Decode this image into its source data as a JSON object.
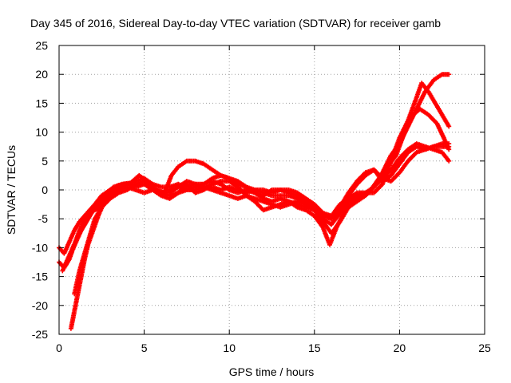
{
  "chart_data": {
    "type": "scatter",
    "title": "Day 345 of 2016, Sidereal Day-to-day VTEC variation (SDTVAR) for receiver gamb",
    "xlabel": "GPS time / hours",
    "ylabel": "SDTVAR / TECUs",
    "xlim": [
      0,
      25
    ],
    "ylim": [
      -25,
      25
    ],
    "x_ticks": [
      "0",
      "5",
      "10",
      "15",
      "20",
      "25"
    ],
    "y_ticks": [
      "25",
      "20",
      "15",
      "10",
      "5",
      "0",
      "-5",
      "-10",
      "-15",
      "-20",
      "-25"
    ],
    "grid": true,
    "marker": "+",
    "color": "#ff0000",
    "series": [
      {
        "points": [
          [
            0.0,
            -10.0
          ],
          [
            0.3,
            -11.0
          ],
          [
            0.6,
            -9.0
          ],
          [
            0.9,
            -7.0
          ],
          [
            1.2,
            -5.5
          ],
          [
            1.5,
            -4.5
          ],
          [
            1.8,
            -3.5
          ],
          [
            2.1,
            -2.5
          ],
          [
            2.5,
            -1.0
          ],
          [
            3.0,
            0.0
          ],
          [
            3.5,
            0.8
          ],
          [
            4.0,
            1.0
          ],
          [
            4.5,
            1.5
          ],
          [
            5.0,
            2.0
          ],
          [
            5.5,
            1.0
          ],
          [
            6.0,
            0.5
          ],
          [
            6.5,
            0.5
          ],
          [
            7.0,
            1.0
          ],
          [
            7.5,
            0.5
          ],
          [
            8.0,
            1.0
          ],
          [
            8.5,
            1.0
          ],
          [
            9.0,
            1.5
          ],
          [
            9.5,
            1.0
          ],
          [
            10.0,
            0.0
          ],
          [
            10.5,
            -0.5
          ],
          [
            11.0,
            0.0
          ],
          [
            11.5,
            -0.5
          ],
          [
            12.0,
            -1.0
          ],
          [
            12.5,
            0.0
          ],
          [
            13.0,
            0.0
          ],
          [
            13.5,
            -0.5
          ],
          [
            14.0,
            -1.0
          ],
          [
            14.5,
            -2.0
          ],
          [
            15.0,
            -3.0
          ],
          [
            15.5,
            -5.0
          ],
          [
            16.0,
            -6.0
          ],
          [
            16.5,
            -4.0
          ],
          [
            17.0,
            -2.0
          ],
          [
            17.5,
            -1.0
          ],
          [
            18.0,
            -0.5
          ],
          [
            18.5,
            0.5
          ],
          [
            19.0,
            3.0
          ],
          [
            19.5,
            6.0
          ],
          [
            20.0,
            8.0
          ],
          [
            20.5,
            11.0
          ],
          [
            21.0,
            14.0
          ],
          [
            21.5,
            17.0
          ],
          [
            22.0,
            19.0
          ],
          [
            22.5,
            20.0
          ],
          [
            22.9,
            20.0
          ]
        ]
      },
      {
        "points": [
          [
            0.2,
            -14.0
          ],
          [
            0.5,
            -12.0
          ],
          [
            0.8,
            -10.0
          ],
          [
            1.1,
            -8.0
          ],
          [
            1.4,
            -6.5
          ],
          [
            1.7,
            -5.0
          ],
          [
            2.0,
            -3.5
          ],
          [
            2.4,
            -2.0
          ],
          [
            2.8,
            -0.5
          ],
          [
            3.2,
            0.5
          ],
          [
            3.7,
            1.0
          ],
          [
            4.2,
            1.2
          ],
          [
            4.7,
            2.5
          ],
          [
            5.2,
            1.5
          ],
          [
            5.7,
            0.0
          ],
          [
            6.2,
            -0.5
          ],
          [
            6.6,
            2.5
          ],
          [
            7.0,
            4.0
          ],
          [
            7.5,
            5.0
          ],
          [
            8.0,
            5.0
          ],
          [
            8.5,
            4.5
          ],
          [
            9.0,
            3.5
          ],
          [
            9.5,
            2.5
          ],
          [
            10.0,
            2.0
          ],
          [
            10.5,
            1.0
          ],
          [
            11.0,
            0.5
          ],
          [
            11.5,
            -0.5
          ],
          [
            12.0,
            -1.5
          ],
          [
            12.5,
            -2.0
          ],
          [
            13.0,
            -1.5
          ],
          [
            13.5,
            -2.0
          ],
          [
            14.0,
            -3.0
          ],
          [
            14.5,
            -3.5
          ],
          [
            15.0,
            -4.5
          ],
          [
            15.5,
            -6.5
          ],
          [
            15.9,
            -9.5
          ],
          [
            16.3,
            -6.5
          ],
          [
            16.8,
            -3.5
          ],
          [
            17.3,
            -2.0
          ],
          [
            17.8,
            -1.0
          ],
          [
            18.3,
            0.0
          ],
          [
            18.8,
            2.0
          ],
          [
            19.3,
            4.0
          ],
          [
            19.8,
            6.0
          ],
          [
            20.3,
            10.0
          ],
          [
            20.8,
            13.0
          ],
          [
            21.2,
            14.0
          ],
          [
            21.7,
            13.0
          ],
          [
            22.2,
            11.5
          ],
          [
            22.6,
            9.0
          ],
          [
            22.9,
            7.0
          ]
        ]
      },
      {
        "points": [
          [
            0.7,
            -24.0
          ],
          [
            0.9,
            -21.0
          ],
          [
            1.1,
            -18.0
          ],
          [
            1.3,
            -15.0
          ],
          [
            1.5,
            -12.0
          ],
          [
            1.7,
            -9.5
          ],
          [
            2.0,
            -7.0
          ],
          [
            2.3,
            -4.5
          ],
          [
            2.6,
            -2.5
          ],
          [
            3.0,
            -1.0
          ],
          [
            3.5,
            0.0
          ],
          [
            4.0,
            0.5
          ],
          [
            4.5,
            0.0
          ],
          [
            5.0,
            -0.5
          ],
          [
            5.5,
            0.0
          ],
          [
            6.0,
            -1.0
          ],
          [
            6.5,
            -1.5
          ],
          [
            7.0,
            -0.5
          ],
          [
            7.5,
            1.0
          ],
          [
            8.0,
            -0.5
          ],
          [
            8.5,
            0.0
          ],
          [
            9.0,
            1.0
          ],
          [
            9.5,
            1.5
          ],
          [
            10.0,
            1.5
          ],
          [
            10.5,
            0.5
          ],
          [
            11.0,
            -1.0
          ],
          [
            11.5,
            -2.0
          ],
          [
            12.0,
            -3.5
          ],
          [
            12.5,
            -3.0
          ],
          [
            13.0,
            -2.5
          ],
          [
            13.5,
            -2.0
          ],
          [
            14.0,
            -2.5
          ],
          [
            14.5,
            -3.0
          ],
          [
            15.0,
            -3.5
          ],
          [
            15.5,
            -4.5
          ],
          [
            16.0,
            -5.0
          ],
          [
            16.5,
            -3.0
          ],
          [
            17.0,
            -1.0
          ],
          [
            17.5,
            1.0
          ],
          [
            18.0,
            2.5
          ],
          [
            18.5,
            3.5
          ],
          [
            19.0,
            1.5
          ],
          [
            19.5,
            2.5
          ],
          [
            20.0,
            4.5
          ],
          [
            20.5,
            6.5
          ],
          [
            21.0,
            7.5
          ],
          [
            21.5,
            7.0
          ],
          [
            22.0,
            7.5
          ],
          [
            22.5,
            8.0
          ],
          [
            22.9,
            8.0
          ]
        ]
      },
      {
        "points": [
          [
            0.9,
            -18.0
          ],
          [
            1.2,
            -14.0
          ],
          [
            1.5,
            -11.0
          ],
          [
            1.8,
            -8.0
          ],
          [
            2.1,
            -5.0
          ],
          [
            2.5,
            -3.0
          ],
          [
            3.0,
            -1.5
          ],
          [
            3.5,
            -0.5
          ],
          [
            4.0,
            0.0
          ],
          [
            4.5,
            1.0
          ],
          [
            5.0,
            1.5
          ],
          [
            5.5,
            0.5
          ],
          [
            6.0,
            -0.5
          ],
          [
            6.5,
            -0.5
          ],
          [
            7.0,
            0.5
          ],
          [
            7.5,
            0.0
          ],
          [
            8.0,
            0.0
          ],
          [
            8.5,
            0.5
          ],
          [
            9.0,
            0.0
          ],
          [
            9.5,
            -0.5
          ],
          [
            10.0,
            -1.0
          ],
          [
            10.5,
            -1.5
          ],
          [
            11.0,
            -1.0
          ],
          [
            11.5,
            -1.5
          ],
          [
            12.0,
            -2.0
          ],
          [
            12.5,
            -2.5
          ],
          [
            13.0,
            -3.0
          ],
          [
            13.5,
            -2.5
          ],
          [
            14.0,
            -2.0
          ],
          [
            14.5,
            -2.5
          ],
          [
            15.0,
            -3.5
          ],
          [
            15.5,
            -4.0
          ],
          [
            16.0,
            -4.5
          ],
          [
            16.5,
            -2.5
          ],
          [
            17.0,
            -1.5
          ],
          [
            17.5,
            -0.5
          ],
          [
            18.0,
            -0.5
          ],
          [
            18.5,
            -0.5
          ],
          [
            19.0,
            1.0
          ],
          [
            19.5,
            5.0
          ],
          [
            20.0,
            9.0
          ],
          [
            20.5,
            12.0
          ],
          [
            21.0,
            16.0
          ],
          [
            21.3,
            18.5
          ],
          [
            21.7,
            17.0
          ],
          [
            22.1,
            15.0
          ],
          [
            22.5,
            13.0
          ],
          [
            22.9,
            11.0
          ]
        ]
      },
      {
        "points": [
          [
            0.4,
            -13.0
          ],
          [
            0.7,
            -11.0
          ],
          [
            1.0,
            -9.0
          ],
          [
            1.3,
            -7.0
          ],
          [
            1.6,
            -5.5
          ],
          [
            1.9,
            -4.0
          ],
          [
            2.2,
            -3.0
          ],
          [
            2.6,
            -1.5
          ],
          [
            3.0,
            -0.5
          ],
          [
            3.5,
            0.5
          ],
          [
            4.0,
            1.0
          ],
          [
            4.5,
            0.5
          ],
          [
            5.0,
            1.0
          ],
          [
            5.5,
            0.0
          ],
          [
            6.0,
            -0.5
          ],
          [
            6.5,
            0.0
          ],
          [
            7.0,
            0.5
          ],
          [
            7.5,
            1.5
          ],
          [
            8.0,
            1.0
          ],
          [
            8.5,
            0.5
          ],
          [
            9.0,
            0.5
          ],
          [
            9.5,
            0.0
          ],
          [
            10.0,
            0.5
          ],
          [
            10.5,
            0.0
          ],
          [
            11.0,
            -0.5
          ],
          [
            11.5,
            0.0
          ],
          [
            12.0,
            -0.5
          ],
          [
            12.5,
            -1.0
          ],
          [
            13.0,
            -1.0
          ],
          [
            13.5,
            -1.0
          ],
          [
            14.0,
            -1.5
          ],
          [
            14.5,
            -2.5
          ],
          [
            15.0,
            -3.5
          ],
          [
            15.5,
            -5.5
          ],
          [
            16.0,
            -7.5
          ],
          [
            16.5,
            -5.5
          ],
          [
            17.0,
            -3.0
          ],
          [
            17.5,
            -2.0
          ],
          [
            18.0,
            -1.0
          ],
          [
            18.5,
            0.5
          ],
          [
            19.0,
            2.0
          ],
          [
            19.5,
            3.5
          ],
          [
            20.0,
            5.5
          ],
          [
            20.5,
            7.0
          ],
          [
            21.0,
            8.0
          ],
          [
            21.5,
            7.5
          ],
          [
            22.0,
            7.0
          ],
          [
            22.5,
            6.5
          ],
          [
            22.9,
            5.0
          ]
        ]
      },
      {
        "points": [
          [
            0.0,
            -12.5
          ],
          [
            0.3,
            -13.5
          ],
          [
            0.6,
            -12.0
          ],
          [
            0.9,
            -9.5
          ],
          [
            1.2,
            -7.0
          ],
          [
            1.5,
            -5.0
          ],
          [
            1.8,
            -4.0
          ],
          [
            2.1,
            -3.5
          ],
          [
            2.4,
            -3.0
          ],
          [
            2.7,
            -1.5
          ],
          [
            3.0,
            -0.5
          ],
          [
            3.5,
            0.5
          ],
          [
            4.0,
            1.0
          ],
          [
            4.5,
            1.0
          ],
          [
            5.0,
            1.0
          ],
          [
            5.5,
            0.5
          ],
          [
            6.0,
            -0.5
          ],
          [
            6.5,
            -1.0
          ],
          [
            7.0,
            -0.5
          ],
          [
            7.5,
            0.0
          ],
          [
            8.0,
            0.5
          ],
          [
            8.5,
            1.0
          ],
          [
            9.0,
            2.0
          ],
          [
            9.5,
            2.5
          ],
          [
            10.0,
            2.0
          ],
          [
            10.5,
            1.5
          ],
          [
            11.0,
            0.5
          ],
          [
            11.5,
            0.0
          ],
          [
            12.0,
            0.0
          ],
          [
            12.5,
            -0.5
          ],
          [
            13.0,
            0.0
          ],
          [
            13.5,
            0.0
          ],
          [
            14.0,
            -0.5
          ],
          [
            14.5,
            -1.5
          ],
          [
            15.0,
            -2.5
          ],
          [
            15.5,
            -4.0
          ],
          [
            16.0,
            -5.0
          ],
          [
            16.5,
            -3.0
          ],
          [
            17.0,
            -0.5
          ],
          [
            17.5,
            1.5
          ],
          [
            18.0,
            3.0
          ],
          [
            18.5,
            3.5
          ],
          [
            19.0,
            2.0
          ],
          [
            19.5,
            1.5
          ],
          [
            20.0,
            3.0
          ],
          [
            20.5,
            5.0
          ],
          [
            21.0,
            6.5
          ],
          [
            21.5,
            7.0
          ],
          [
            22.0,
            7.5
          ],
          [
            22.5,
            7.5
          ],
          [
            22.9,
            7.5
          ]
        ]
      }
    ]
  }
}
